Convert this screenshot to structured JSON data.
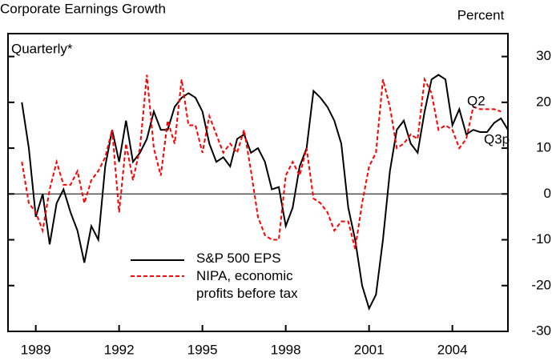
{
  "chart_data": {
    "type": "line",
    "title": "Corporate Earnings Growth",
    "y_axis_label": "Percent",
    "annotations": {
      "frequency": "Quarterly*",
      "red_end": "Q2",
      "black_end": "Q3p"
    },
    "x": [
      1988.5,
      1988.75,
      1989,
      1989.25,
      1989.5,
      1989.75,
      1990,
      1990.25,
      1990.5,
      1990.75,
      1991,
      1991.25,
      1991.5,
      1991.75,
      1992,
      1992.25,
      1992.5,
      1992.75,
      1993,
      1993.25,
      1993.5,
      1993.75,
      1994,
      1994.25,
      1994.5,
      1994.75,
      1995,
      1995.25,
      1995.5,
      1995.75,
      1996,
      1996.25,
      1996.5,
      1996.75,
      1997,
      1997.25,
      1997.5,
      1997.75,
      1998,
      1998.25,
      1998.5,
      1998.75,
      1999,
      1999.25,
      1999.5,
      1999.75,
      2000,
      2000.25,
      2000.5,
      2000.75,
      2001,
      2001.25,
      2001.5,
      2001.75,
      2002,
      2002.25,
      2002.5,
      2002.75,
      2003,
      2003.25,
      2003.5,
      2003.75,
      2004,
      2004.25,
      2004.5,
      2004.75,
      2005,
      2005.25,
      2005.5,
      2005.75,
      2006
    ],
    "series": [
      {
        "name": "S&P 500 EPS",
        "color": "#000000",
        "dash": false,
        "values": [
          20,
          10,
          -5,
          0,
          -11,
          -2,
          1,
          -4,
          -8,
          -15,
          -7,
          -10,
          6,
          14,
          7,
          16,
          7,
          9,
          12,
          18,
          14,
          14,
          19,
          21,
          22,
          21,
          18,
          11,
          7,
          8,
          6,
          12,
          13,
          9,
          10,
          7,
          1,
          1.5,
          -7,
          -3,
          6,
          10,
          22.5,
          21,
          19,
          16,
          11,
          -3,
          -10,
          -20,
          -25,
          -22,
          -10,
          5,
          14,
          16,
          11,
          9,
          18,
          25,
          26,
          25,
          15,
          18.5,
          13,
          14,
          13.5,
          13.5,
          15.5,
          16.5,
          14
        ]
      },
      {
        "name": "NIPA, economic profits before tax",
        "color": "#ff0000",
        "dash": true,
        "values": [
          7,
          -2,
          -4,
          -8,
          1,
          7,
          2,
          2,
          5,
          -2,
          3,
          5,
          8,
          14,
          -4,
          11,
          3,
          10,
          26,
          10,
          4,
          16,
          11,
          25,
          15,
          15,
          9,
          17,
          13,
          9,
          11,
          9,
          14,
          5,
          -5,
          -9,
          -10,
          -10,
          4,
          7,
          4,
          10,
          -1,
          -2,
          -4,
          -8,
          -6,
          -6,
          -12,
          -2,
          6,
          9,
          25,
          19,
          10,
          11,
          13,
          12,
          25,
          22,
          14,
          15,
          14,
          10,
          12,
          19,
          18.5,
          18.5,
          18.5,
          18,
          null
        ]
      }
    ],
    "xlim": [
      1988,
      2006
    ],
    "xticks": [
      1989,
      1992,
      1995,
      1998,
      2001,
      2004
    ],
    "ylim": [
      -30,
      35
    ],
    "yticks": [
      30,
      20,
      10,
      0,
      -10,
      -20,
      -30
    ],
    "zero_line": true
  }
}
